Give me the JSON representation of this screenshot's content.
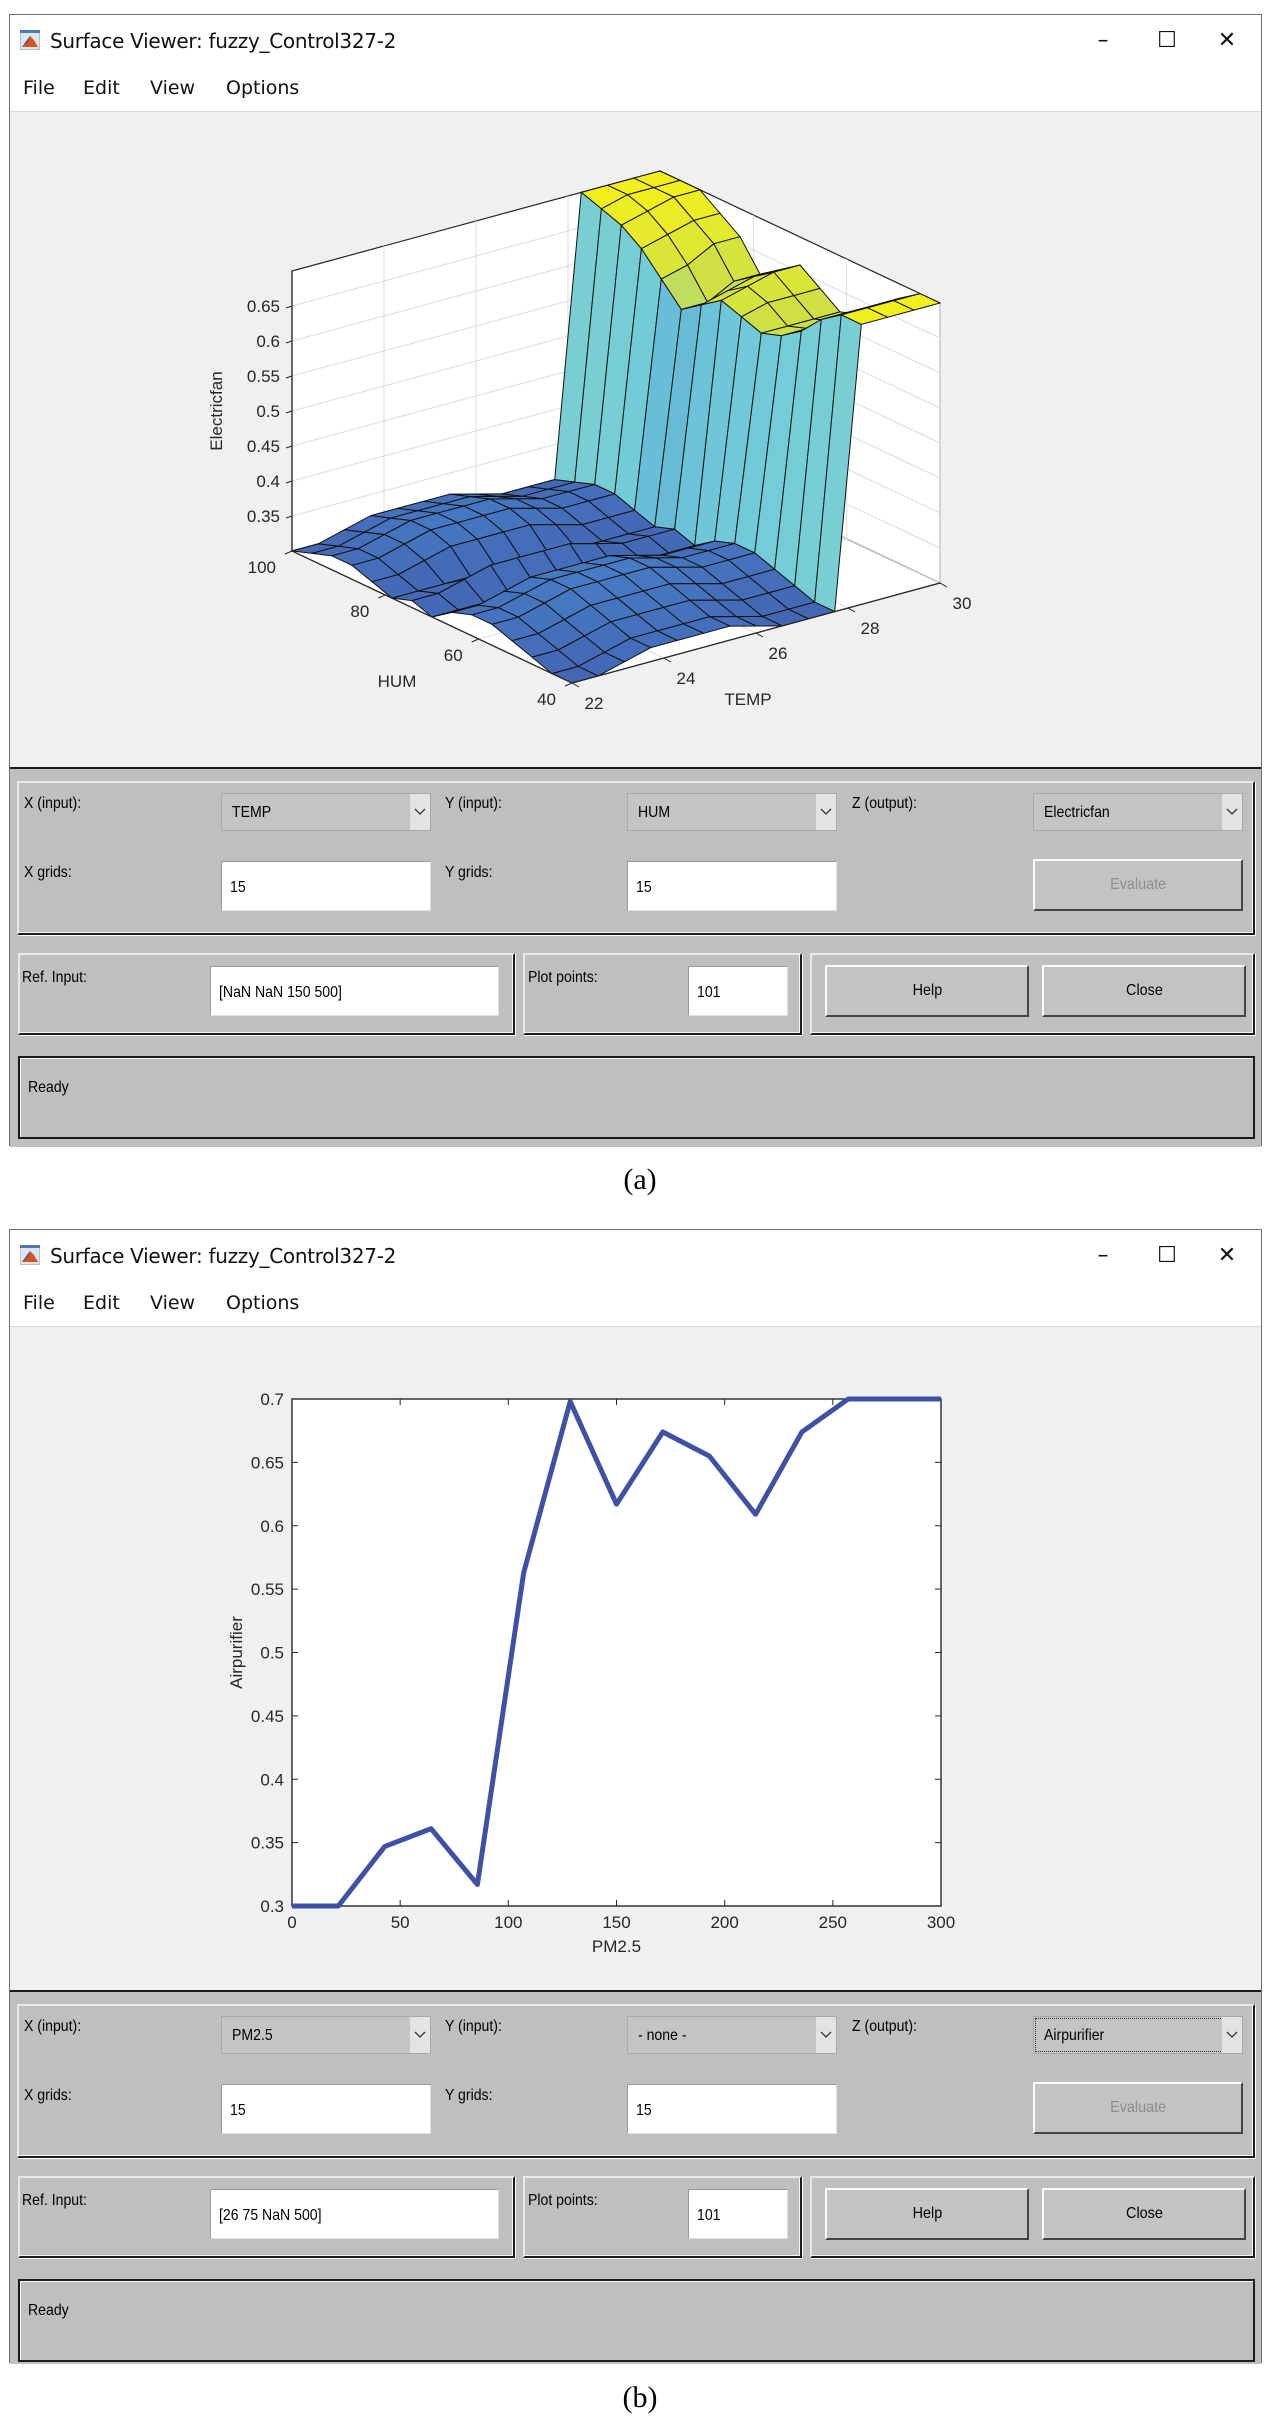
{
  "windows": [
    {
      "id": "a",
      "title": "Surface Viewer: fuzzy_Control327-2",
      "controls": {
        "minimize": "–",
        "maximize": "☐",
        "close": "✕"
      },
      "menu": [
        "File",
        "Edit",
        "View",
        "Options"
      ],
      "panel": {
        "x_input_label": "X (input):",
        "x_input_value": "TEMP",
        "y_input_label": "Y (input):",
        "y_input_value": "HUM",
        "z_output_label": "Z (output):",
        "z_output_value": "Electricfan",
        "x_grids_label": "X grids:",
        "x_grids_value": "15",
        "y_grids_label": "Y grids:",
        "y_grids_value": "15",
        "evaluate_label": "Evaluate",
        "ref_input_label": "Ref. Input:",
        "ref_input_value": "[NaN NaN 150 500]",
        "plot_points_label": "Plot points:",
        "plot_points_value": "101",
        "help_label": "Help",
        "close_label": "Close",
        "status": "Ready"
      },
      "caption": "(a)"
    },
    {
      "id": "b",
      "title": "Surface Viewer: fuzzy_Control327-2",
      "controls": {
        "minimize": "–",
        "maximize": "☐",
        "close": "✕"
      },
      "menu": [
        "File",
        "Edit",
        "View",
        "Options"
      ],
      "panel": {
        "x_input_label": "X (input):",
        "x_input_value": "PM2.5",
        "y_input_label": "Y (input):",
        "y_input_value": "- none -",
        "z_output_label": "Z (output):",
        "z_output_value": "Airpurifier",
        "x_grids_label": "X grids:",
        "x_grids_value": "15",
        "y_grids_label": "Y grids:",
        "y_grids_value": "15",
        "evaluate_label": "Evaluate",
        "ref_input_label": "Ref. Input:",
        "ref_input_value": "[26 75 NaN 500]",
        "plot_points_label": "Plot points:",
        "plot_points_value": "101",
        "help_label": "Help",
        "close_label": "Close",
        "status": "Ready"
      },
      "caption": "(b)"
    }
  ],
  "colors": {
    "line_blue": "#3f51a5",
    "surface_low": "#4467b4",
    "surface_mid": "#72ccd8",
    "surface_high": "#ecec26",
    "panel_gray": "#bfbfbf",
    "figure_bg": "#f0f0f0"
  },
  "chart_data": [
    {
      "type": "surface",
      "title": "",
      "xlabel": "TEMP",
      "ylabel": "HUM",
      "zlabel": "Electricfan",
      "x_ticks": [
        22,
        24,
        26,
        28,
        30
      ],
      "y_ticks": [
        40,
        60,
        80,
        100
      ],
      "z_ticks": [
        0.35,
        0.4,
        0.45,
        0.5,
        0.55,
        0.6,
        0.65
      ],
      "xlim": [
        22,
        30
      ],
      "ylim": [
        40,
        100
      ],
      "zlim": [
        0.3,
        0.7
      ],
      "grid": true,
      "x": [
        22,
        22.57,
        23.14,
        23.71,
        24.29,
        24.86,
        25.43,
        26,
        26.57,
        27.14,
        27.71,
        28.29,
        28.86,
        29.43,
        30
      ],
      "y": [
        40,
        44.29,
        48.57,
        52.86,
        57.14,
        61.43,
        65.71,
        70,
        74.29,
        78.57,
        82.86,
        87.14,
        91.43,
        95.71,
        100
      ],
      "z_rows_by_y": [
        [
          0.3,
          0.3,
          0.31,
          0.32,
          0.32,
          0.32,
          0.32,
          0.31,
          0.3,
          0.3,
          0.3,
          0.7,
          0.7,
          0.7,
          0.7
        ],
        [
          0.3,
          0.3,
          0.31,
          0.32,
          0.32,
          0.32,
          0.32,
          0.31,
          0.3,
          0.3,
          0.3,
          0.7,
          0.7,
          0.7,
          0.7
        ],
        [
          0.31,
          0.31,
          0.32,
          0.33,
          0.33,
          0.33,
          0.33,
          0.32,
          0.31,
          0.31,
          0.31,
          0.68,
          0.68,
          0.68,
          0.68
        ],
        [
          0.32,
          0.32,
          0.33,
          0.34,
          0.34,
          0.34,
          0.34,
          0.33,
          0.32,
          0.32,
          0.32,
          0.65,
          0.65,
          0.65,
          0.65
        ],
        [
          0.33,
          0.33,
          0.34,
          0.35,
          0.35,
          0.35,
          0.35,
          0.34,
          0.33,
          0.33,
          0.33,
          0.63,
          0.63,
          0.63,
          0.63
        ],
        [
          0.33,
          0.33,
          0.34,
          0.35,
          0.35,
          0.35,
          0.35,
          0.34,
          0.33,
          0.33,
          0.33,
          0.62,
          0.62,
          0.62,
          0.62
        ],
        [
          0.32,
          0.32,
          0.33,
          0.34,
          0.34,
          0.34,
          0.34,
          0.33,
          0.32,
          0.32,
          0.32,
          0.63,
          0.64,
          0.64,
          0.64
        ],
        [
          0.3,
          0.3,
          0.3,
          0.3,
          0.3,
          0.3,
          0.3,
          0.3,
          0.3,
          0.3,
          0.3,
          0.64,
          0.65,
          0.66,
          0.66
        ],
        [
          0.31,
          0.31,
          0.32,
          0.33,
          0.33,
          0.33,
          0.33,
          0.32,
          0.31,
          0.31,
          0.31,
          0.62,
          0.63,
          0.64,
          0.64
        ],
        [
          0.3,
          0.3,
          0.3,
          0.3,
          0.3,
          0.3,
          0.3,
          0.3,
          0.3,
          0.3,
          0.3,
          0.6,
          0.6,
          0.62,
          0.62
        ],
        [
          0.31,
          0.31,
          0.32,
          0.33,
          0.33,
          0.33,
          0.33,
          0.32,
          0.31,
          0.31,
          0.31,
          0.63,
          0.64,
          0.66,
          0.66
        ],
        [
          0.32,
          0.32,
          0.33,
          0.34,
          0.34,
          0.34,
          0.34,
          0.33,
          0.32,
          0.32,
          0.32,
          0.66,
          0.67,
          0.68,
          0.68
        ],
        [
          0.32,
          0.32,
          0.33,
          0.34,
          0.34,
          0.34,
          0.34,
          0.33,
          0.32,
          0.32,
          0.32,
          0.68,
          0.69,
          0.7,
          0.7
        ],
        [
          0.31,
          0.31,
          0.32,
          0.33,
          0.33,
          0.33,
          0.33,
          0.32,
          0.31,
          0.31,
          0.31,
          0.69,
          0.7,
          0.7,
          0.7
        ],
        [
          0.3,
          0.3,
          0.31,
          0.32,
          0.32,
          0.32,
          0.32,
          0.31,
          0.3,
          0.3,
          0.3,
          0.7,
          0.7,
          0.7,
          0.7
        ]
      ]
    },
    {
      "type": "line",
      "title": "",
      "xlabel": "PM2.5",
      "ylabel": "Airpurifier",
      "x_ticks": [
        0,
        50,
        100,
        150,
        200,
        250,
        300
      ],
      "y_ticks": [
        0.3,
        0.35,
        0.4,
        0.45,
        0.5,
        0.55,
        0.6,
        0.65,
        0.7
      ],
      "xlim": [
        0,
        300
      ],
      "ylim": [
        0.3,
        0.7
      ],
      "grid": false,
      "x": [
        0,
        21.4,
        42.9,
        64.3,
        85.7,
        107.1,
        128.6,
        150,
        171.4,
        192.9,
        214.3,
        235.7,
        257.1,
        278.6,
        300
      ],
      "series": [
        {
          "name": "Airpurifier",
          "values": [
            0.3,
            0.3,
            0.347,
            0.361,
            0.317,
            0.563,
            0.698,
            0.617,
            0.674,
            0.655,
            0.609,
            0.674,
            0.7,
            0.7,
            0.7
          ]
        }
      ]
    }
  ]
}
